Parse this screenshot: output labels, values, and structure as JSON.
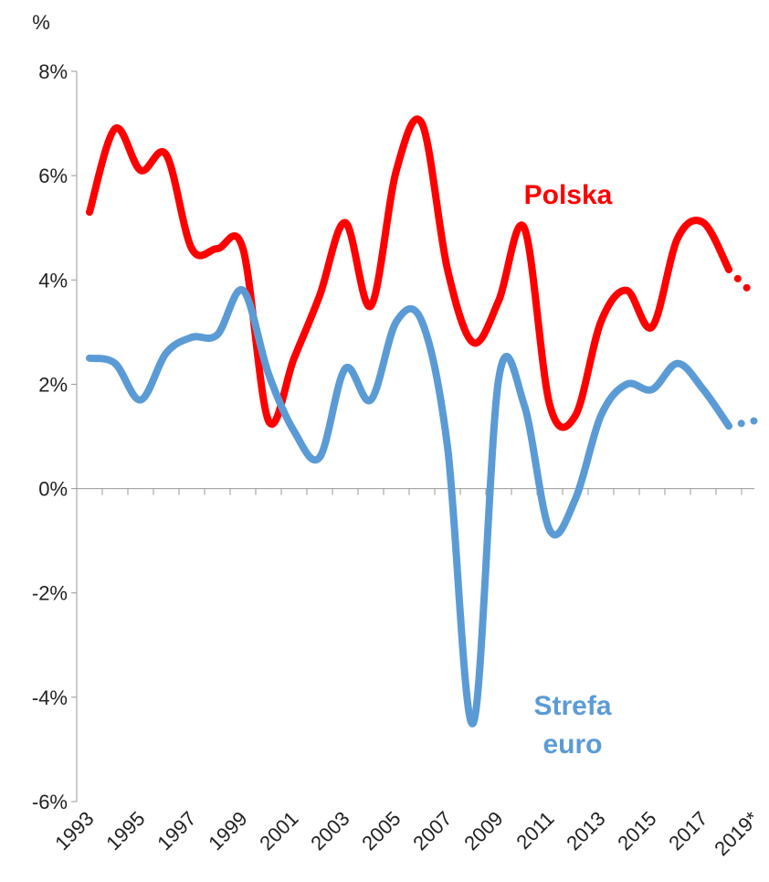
{
  "chart_data": {
    "type": "line",
    "y_label": "%",
    "categories": [
      "1993",
      null,
      "1995",
      null,
      "1997",
      null,
      "1999",
      null,
      "2001",
      null,
      "2003",
      null,
      "2005",
      null,
      "2007",
      null,
      "2009",
      null,
      "2011",
      null,
      "2013",
      null,
      "2015",
      null,
      "2017",
      null,
      "2019*"
    ],
    "series": [
      {
        "name": "Polska",
        "color": "#ff0000",
        "values": [
          5.3,
          6.9,
          6.1,
          6.4,
          4.6,
          4.6,
          4.6,
          1.3,
          2.5,
          3.7,
          5.1,
          3.5,
          6.1,
          7.0,
          4.2,
          2.8,
          3.6,
          5.0,
          1.6,
          1.4,
          3.2,
          3.8,
          3.1,
          4.8,
          5.1,
          4.2,
          3.7
        ]
      },
      {
        "name": "Strefa euro",
        "color": "#5b9bd5",
        "values": [
          2.5,
          2.4,
          1.7,
          2.6,
          2.9,
          2.95,
          3.8,
          2.2,
          1.1,
          0.6,
          2.3,
          1.7,
          3.2,
          3.2,
          0.8,
          -4.5,
          2.1,
          1.6,
          -0.8,
          -0.2,
          1.4,
          2.0,
          1.9,
          2.4,
          1.9,
          1.2,
          1.3
        ]
      }
    ],
    "forecast_from_index": 25,
    "ylim": [
      -6,
      8
    ],
    "yticks": [
      {
        "value": -6,
        "label": "-6%"
      },
      {
        "value": -4,
        "label": "-4%"
      },
      {
        "value": -2,
        "label": "-2%"
      },
      {
        "value": 0,
        "label": "0%"
      },
      {
        "value": 2,
        "label": "2%"
      },
      {
        "value": 4,
        "label": "4%"
      },
      {
        "value": 6,
        "label": "6%"
      },
      {
        "value": 8,
        "label": "8%"
      }
    ]
  }
}
